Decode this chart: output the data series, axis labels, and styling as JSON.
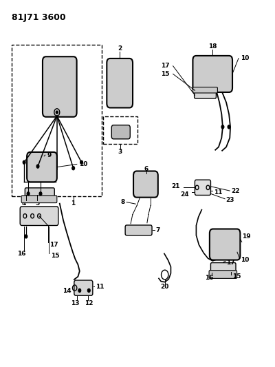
{
  "title": "81J71 3600",
  "bg_color": "#ffffff",
  "line_color": "#000000",
  "fig_width": 4.0,
  "fig_height": 5.33,
  "dpi": 100
}
